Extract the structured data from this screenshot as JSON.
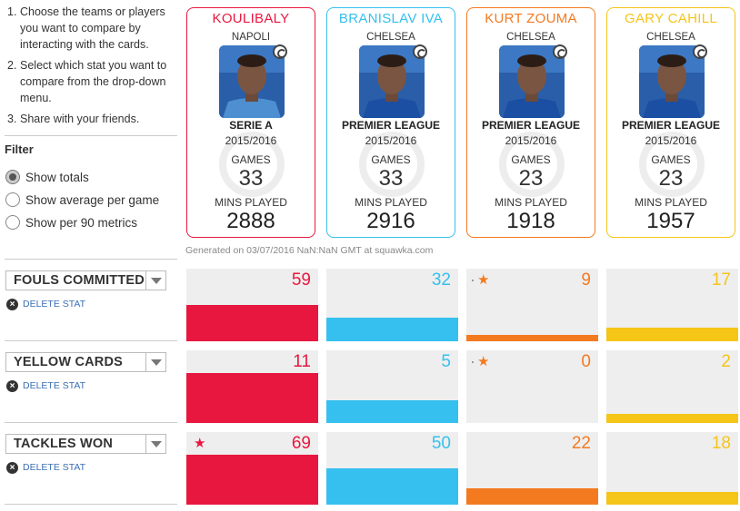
{
  "instructions": [
    {
      "num": "1.",
      "text": "Choose the teams or players you want to compare by interacting with the cards."
    },
    {
      "num": "2.",
      "text": "Select which stat you want to compare from the drop-down menu."
    },
    {
      "num": "3.",
      "text": "Share with your friends."
    }
  ],
  "filter": {
    "title": "Filter",
    "options": [
      {
        "label": "Show totals",
        "checked": true
      },
      {
        "label": "Show average per game",
        "checked": false
      },
      {
        "label": "Show per 90 metrics",
        "checked": false
      }
    ]
  },
  "players": [
    {
      "name": "KOULIBALY",
      "team": "NAPOLI",
      "league": "SERIE A",
      "season": "2015/2016",
      "games_label": "GAMES",
      "games": "33",
      "mins_label": "MINS PLAYED",
      "mins": "2888",
      "color": "#e8173f",
      "jersey": "#4d8fd1"
    },
    {
      "name": "BRANISLAV IVA",
      "team": "CHELSEA",
      "league": "PREMIER LEAGUE",
      "season": "2015/2016",
      "games_label": "GAMES",
      "games": "33",
      "mins_label": "MINS PLAYED",
      "mins": "2916",
      "color": "#35c0ef",
      "jersey": "#1b4fa3"
    },
    {
      "name": "KURT ZOUMA",
      "team": "CHELSEA",
      "league": "PREMIER LEAGUE",
      "season": "2015/2016",
      "games_label": "GAMES",
      "games": "23",
      "mins_label": "MINS PLAYED",
      "mins": "1918",
      "color": "#f47a20",
      "jersey": "#1b4fa3"
    },
    {
      "name": "GARY CAHILL",
      "team": "CHELSEA",
      "league": "PREMIER LEAGUE",
      "season": "2015/2016",
      "games_label": "GAMES",
      "games": "23",
      "mins_label": "MINS PLAYED",
      "mins": "1957",
      "color": "#f5c518",
      "jersey": "#1b4fa3"
    }
  ],
  "generated": "Generated on 03/07/2016 NaN:NaN GMT at squawka.com",
  "stats": [
    {
      "label": "FOULS COMMITTED",
      "delete_label": "DELETE STAT",
      "values": [
        59,
        32,
        9,
        17
      ],
      "fill": [
        0.45,
        0.3,
        0.08,
        0.17
      ],
      "star": [
        false,
        false,
        true,
        false
      ]
    },
    {
      "label": "YELLOW CARDS",
      "delete_label": "DELETE STAT",
      "values": [
        11,
        5,
        0,
        2
      ],
      "fill": [
        0.62,
        0.28,
        0.0,
        0.11
      ],
      "star": [
        false,
        false,
        true,
        false
      ]
    },
    {
      "label": "TACKLES WON",
      "delete_label": "DELETE STAT",
      "values": [
        69,
        50,
        22,
        18
      ],
      "fill": [
        0.62,
        0.46,
        0.2,
        0.16
      ],
      "star": [
        true,
        false,
        false,
        false
      ]
    }
  ],
  "icons": {
    "delete": "close-icon",
    "star": "star-icon",
    "dropdown": "chevron-down-icon",
    "badge": "club-badge-icon"
  }
}
